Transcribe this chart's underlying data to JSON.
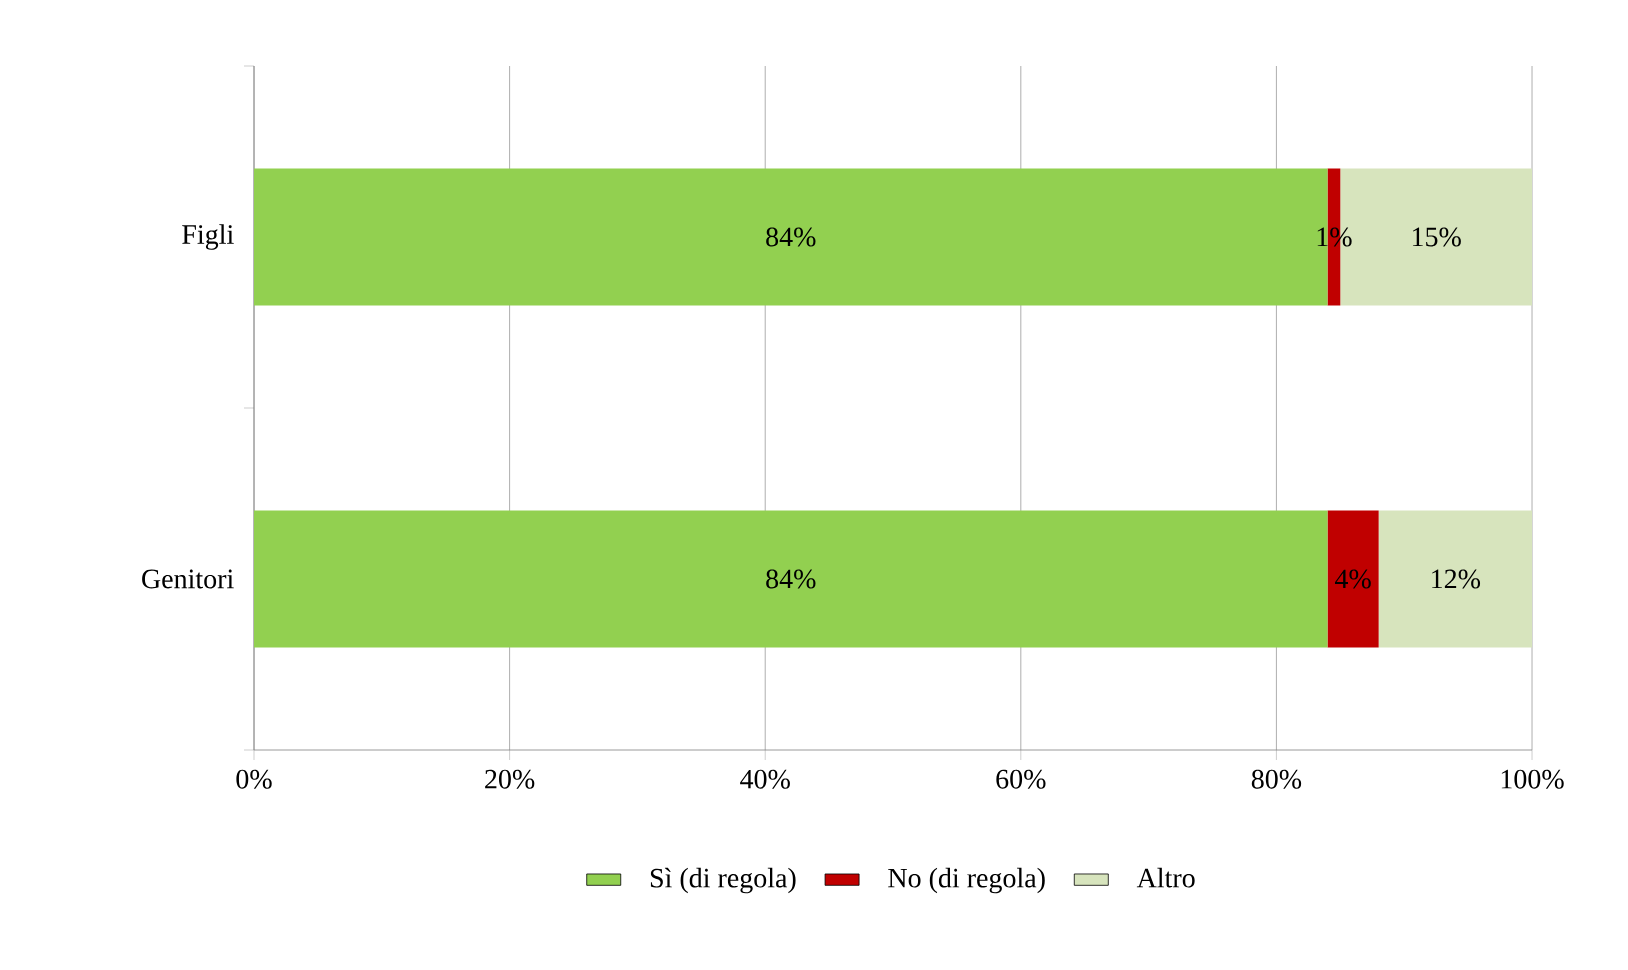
{
  "chart_data": {
    "type": "bar",
    "orientation": "horizontal",
    "stacked": true,
    "categories": [
      "Figli",
      "Genitori"
    ],
    "series": [
      {
        "name": "Sì (di regola)",
        "color": "#92d050",
        "values": [
          84,
          84
        ],
        "value_labels": [
          "84%",
          "84%"
        ]
      },
      {
        "name": "No (di regola)",
        "color": "#c00000",
        "values": [
          1,
          4
        ],
        "value_labels": [
          "1%",
          "4%"
        ]
      },
      {
        "name": "Altro",
        "color": "#d7e4bd",
        "values": [
          15,
          12
        ],
        "value_labels": [
          "15%",
          "12%"
        ]
      }
    ],
    "xlim": [
      0,
      100
    ],
    "xticks": [
      {
        "value": 0,
        "label": "0%"
      },
      {
        "value": 20,
        "label": "20%"
      },
      {
        "value": 40,
        "label": "40%"
      },
      {
        "value": 60,
        "label": "60%"
      },
      {
        "value": 80,
        "label": "80%"
      },
      {
        "value": 100,
        "label": "100%"
      }
    ],
    "grid": "x",
    "legend": "bottom"
  }
}
